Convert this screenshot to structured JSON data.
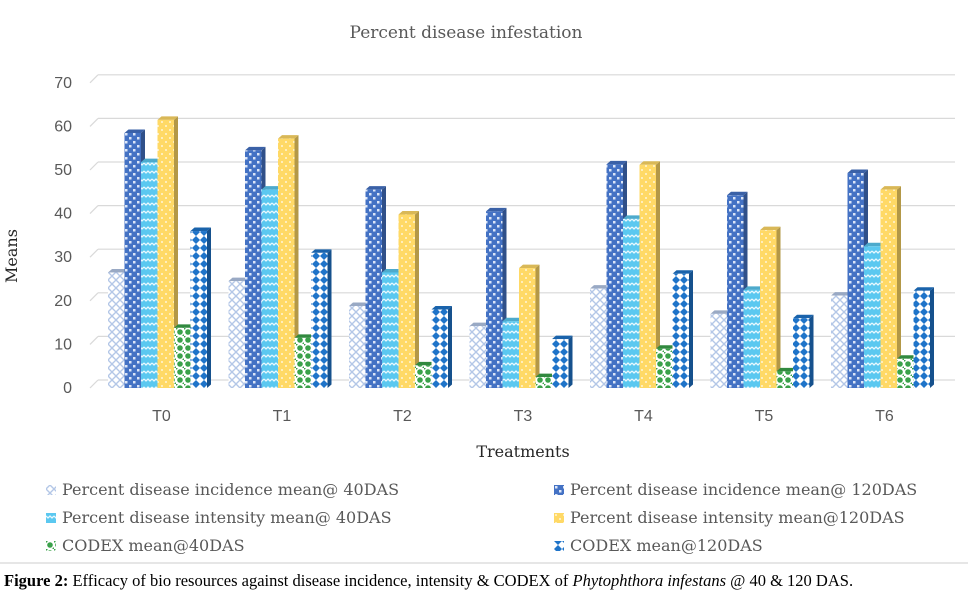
{
  "chart_data": {
    "type": "bar",
    "title": "Percent disease infestation",
    "xlabel": "Treatments",
    "ylabel": "Means",
    "ylim": [
      0,
      70
    ],
    "yticks": [
      0,
      10,
      20,
      30,
      40,
      50,
      60,
      70
    ],
    "grid": true,
    "legend_position": "bottom",
    "categories": [
      "T0",
      "T1",
      "T2",
      "T3",
      "T4",
      "T5",
      "T6"
    ],
    "series": [
      {
        "name": "Percent disease incidence mean@ 40DAS",
        "color": "#b4c7e7",
        "pattern": "diamond-lattice",
        "values": [
          26.5,
          24.5,
          18.8,
          14.2,
          22.8,
          17.0,
          21.2
        ]
      },
      {
        "name": "Percent disease incidence mean@ 120DAS",
        "color": "#4472c4",
        "pattern": "checker",
        "values": [
          58.5,
          54.5,
          45.5,
          40.5,
          51.3,
          44.2,
          49.3
        ]
      },
      {
        "name": "Percent disease intensity mean@ 40DAS",
        "color": "#5bc8f0",
        "pattern": "wave",
        "values": [
          51.8,
          45.5,
          26.5,
          15.3,
          38.8,
          22.5,
          32.5
        ]
      },
      {
        "name": "Percent disease intensity mean@120DAS",
        "color": "#ffd966",
        "pattern": "dots",
        "values": [
          61.5,
          57.2,
          39.8,
          27.5,
          51.2,
          36.2,
          45.5
        ]
      },
      {
        "name": "CODEX mean@40DAS",
        "color": "#3aa14a",
        "pattern": "sphere",
        "values": [
          13.8,
          11.5,
          5.2,
          2.5,
          9.0,
          3.8,
          6.7
        ]
      },
      {
        "name": "CODEX mean@120DAS",
        "color": "#1f74c9",
        "pattern": "hourglass",
        "values": [
          36.0,
          31.0,
          18.0,
          11.2,
          26.2,
          16.0,
          22.3
        ]
      }
    ]
  },
  "caption": {
    "label": "Figure 2:",
    "text_before": " Efficacy of bio resources against disease incidence, intensity & CODEX of ",
    "italic": "Phytophthora infestans",
    "text_after": " @ 40 & 120 DAS."
  }
}
